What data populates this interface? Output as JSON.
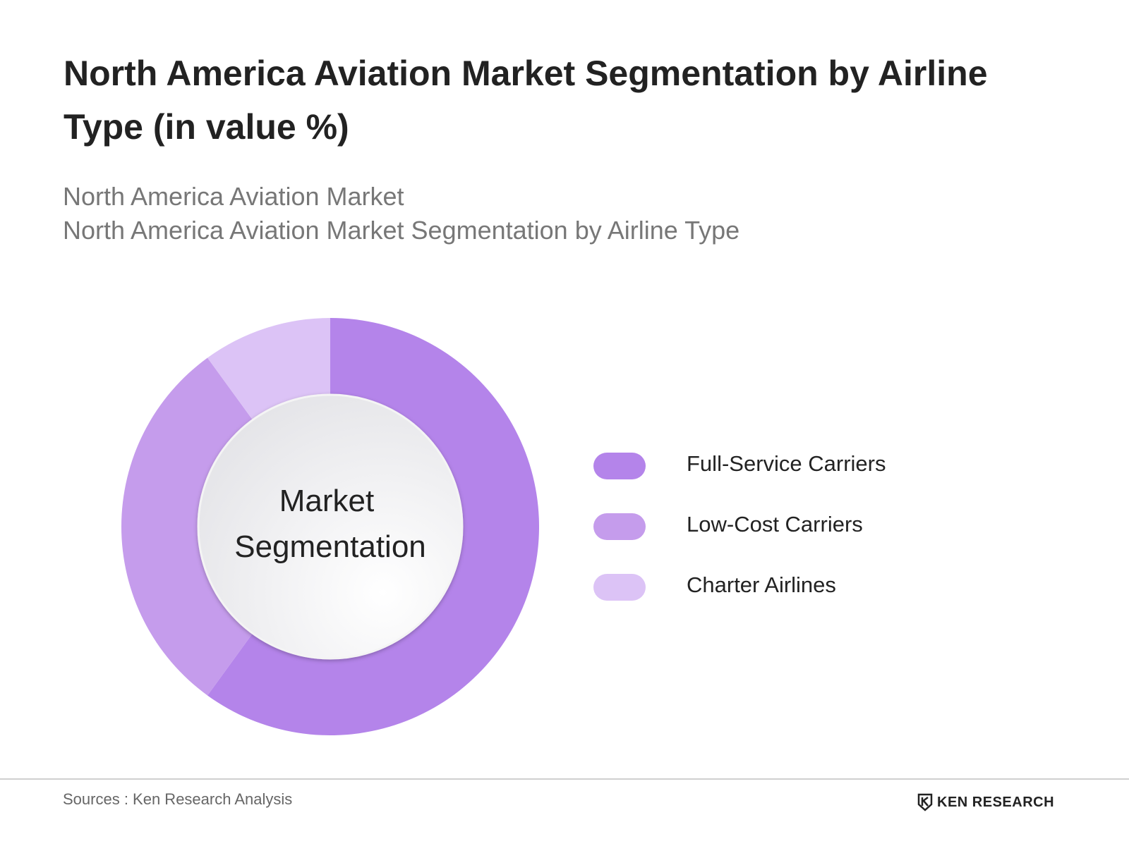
{
  "header": {
    "title": "North America Aviation Market Segmentation by Airline Type (in value %)",
    "subtitle_1": "North America Aviation Market",
    "subtitle_2": "North America Aviation Market Segmentation by Airline Type"
  },
  "chart_data": {
    "type": "pie",
    "variant": "donut",
    "center_label_1": "Market",
    "center_label_2": "Segmentation",
    "categories": [
      "Full-Service Carriers",
      "Low-Cost Carriers",
      "Charter Airlines"
    ],
    "values": [
      60,
      30,
      10
    ],
    "colors": [
      "#b484ea",
      "#c59cec",
      "#dcc3f6"
    ],
    "legend_position": "right"
  },
  "footer": {
    "sources": "Sources : Ken Research Analysis",
    "logo_text": "KEN RESEARCH"
  }
}
